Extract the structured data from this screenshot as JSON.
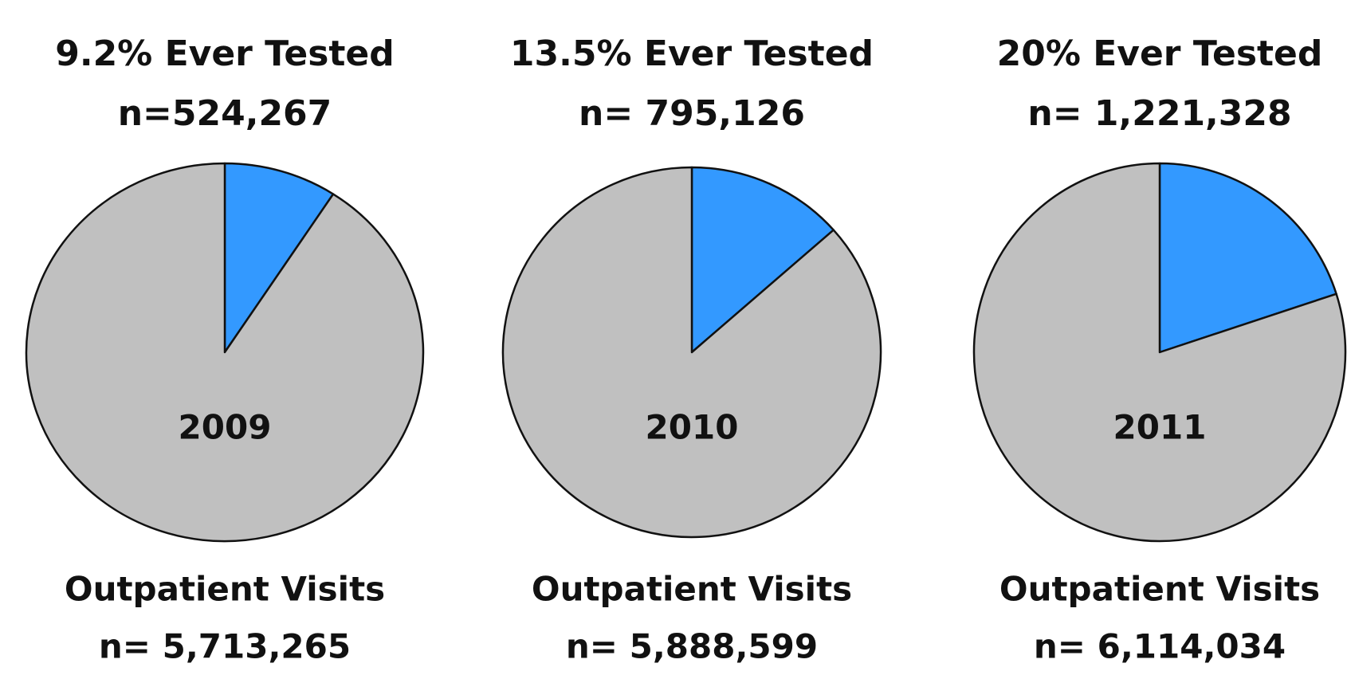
{
  "chart_data": [
    {
      "type": "pie",
      "title": "9.2% Ever Tested",
      "subtitle": "n=524,267",
      "values": [
        9.2,
        90.8
      ],
      "colors": [
        "#3399ff",
        "#c0c0c0"
      ],
      "center_label": "2009",
      "footer": "Outpatient Visits",
      "footer_subtitle": "n= 5,713,265"
    },
    {
      "type": "pie",
      "title": "13.5% Ever Tested",
      "subtitle": "n= 795,126",
      "values": [
        13.5,
        86.5
      ],
      "colors": [
        "#3399ff",
        "#c0c0c0"
      ],
      "center_label": "2010",
      "footer": "Outpatient Visits",
      "footer_subtitle": "n= 5,888,599"
    },
    {
      "type": "pie",
      "title": "20% Ever Tested",
      "subtitle": "n= 1,221,328",
      "values": [
        20,
        80
      ],
      "colors": [
        "#3399ff",
        "#c0c0c0"
      ],
      "center_label": "2011",
      "footer": "Outpatient Visits",
      "footer_subtitle": "n= 6,114,034"
    }
  ]
}
